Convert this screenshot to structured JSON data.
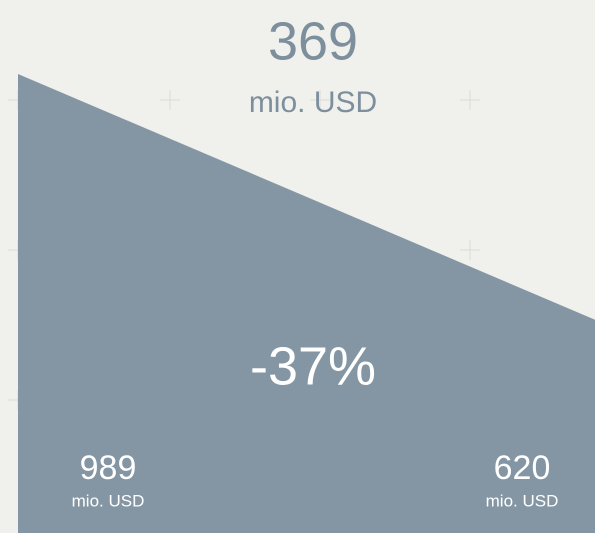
{
  "chart_data": {
    "type": "area",
    "categories": [
      null,
      null
    ],
    "values": [
      989,
      620
    ],
    "unit": "mio. USD",
    "difference": 369,
    "change_label": "-37%",
    "color": "#8496a3",
    "ylim": [
      300,
      1100
    ]
  }
}
